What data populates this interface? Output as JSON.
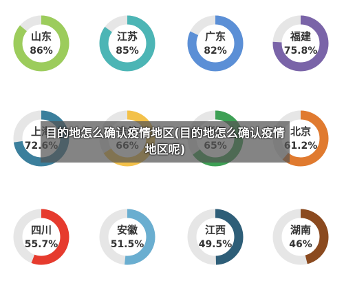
{
  "overlay_caption": "目的地怎么确认疫情地区(目的地怎么确认疫情地区呢)",
  "chart_data": {
    "type": "pie",
    "track_color": "#e6e6e6",
    "items": [
      {
        "label": "山东",
        "value": 86,
        "display": "86%",
        "color": "#9ccc5c"
      },
      {
        "label": "江苏",
        "value": 85,
        "display": "85%",
        "color": "#4cb5b5"
      },
      {
        "label": "广东",
        "value": 82,
        "display": "82%",
        "color": "#5b8fd6"
      },
      {
        "label": "福建",
        "value": 75.8,
        "display": "75.8%",
        "color": "#7a64a8"
      },
      {
        "label": "上海",
        "value": 72.6,
        "display": "72.6%",
        "color": "#3b7f9c"
      },
      {
        "label": "吉林",
        "value": 66,
        "display": "66%",
        "color": "#f3c14a"
      },
      {
        "label": "浙江",
        "value": 65,
        "display": "65%",
        "color": "#3ea055"
      },
      {
        "label": "北京",
        "value": 61.2,
        "display": "61.2%",
        "color": "#e07a2f"
      },
      {
        "label": "四川",
        "value": 55.7,
        "display": "55.7%",
        "color": "#e63b2e"
      },
      {
        "label": "安徽",
        "value": 51.5,
        "display": "51.5%",
        "color": "#6aaed0"
      },
      {
        "label": "江西",
        "value": 49.5,
        "display": "49.5%",
        "color": "#2e5e78"
      },
      {
        "label": "湖南",
        "value": 46,
        "display": "46%",
        "color": "#8b4a1f"
      }
    ]
  }
}
